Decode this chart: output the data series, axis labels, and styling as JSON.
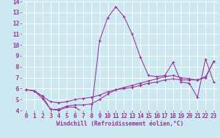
{
  "xlabel": "Windchill (Refroidissement éolien,°C)",
  "background_color": "#cce8f0",
  "grid_color": "#ffffff",
  "line_color": "#993399",
  "xlim": [
    -0.5,
    23.5
  ],
  "ylim": [
    4,
    14
  ],
  "x_ticks": [
    0,
    1,
    2,
    3,
    4,
    5,
    6,
    7,
    8,
    9,
    10,
    11,
    12,
    13,
    14,
    15,
    16,
    17,
    18,
    19,
    20,
    21,
    22,
    23
  ],
  "y_ticks": [
    4,
    5,
    6,
    7,
    8,
    9,
    10,
    11,
    12,
    13,
    14
  ],
  "series1_x": [
    0,
    1,
    2,
    3,
    4,
    5,
    6,
    7,
    8,
    9,
    10,
    11,
    12,
    13,
    14,
    15,
    16,
    17,
    18,
    19,
    20,
    21,
    22,
    23
  ],
  "series1_y": [
    5.9,
    5.8,
    5.3,
    4.1,
    4.0,
    4.3,
    4.3,
    3.8,
    3.9,
    10.4,
    12.5,
    13.5,
    12.6,
    11.0,
    8.9,
    7.2,
    7.1,
    7.2,
    8.4,
    6.6,
    6.5,
    5.2,
    8.7,
    6.6
  ],
  "series2_x": [
    0,
    1,
    2,
    3,
    4,
    5,
    6,
    7,
    8,
    9,
    10,
    11,
    12,
    13,
    14,
    15,
    16,
    17,
    18,
    19,
    20,
    21,
    22,
    23
  ],
  "series2_y": [
    5.9,
    5.8,
    5.3,
    4.8,
    4.7,
    4.8,
    5.0,
    5.1,
    5.2,
    5.4,
    5.7,
    5.9,
    6.0,
    6.1,
    6.3,
    6.5,
    6.6,
    6.8,
    6.9,
    6.8,
    6.8,
    6.8,
    7.0,
    8.5
  ],
  "series3_x": [
    0,
    1,
    2,
    3,
    4,
    5,
    6,
    7,
    8,
    9,
    10,
    11,
    12,
    13,
    14,
    15,
    16,
    17,
    18,
    19,
    20,
    21,
    22,
    23
  ],
  "series3_y": [
    5.9,
    5.8,
    5.1,
    4.1,
    4.1,
    4.4,
    4.5,
    4.5,
    4.6,
    5.0,
    5.5,
    5.9,
    6.1,
    6.3,
    6.5,
    6.7,
    6.9,
    7.1,
    7.2,
    7.0,
    6.9,
    6.8,
    7.1,
    8.5
  ],
  "tick_fontsize": 6.0,
  "xlabel_fontsize": 6.0,
  "lw": 0.8,
  "marker_size": 3.0
}
